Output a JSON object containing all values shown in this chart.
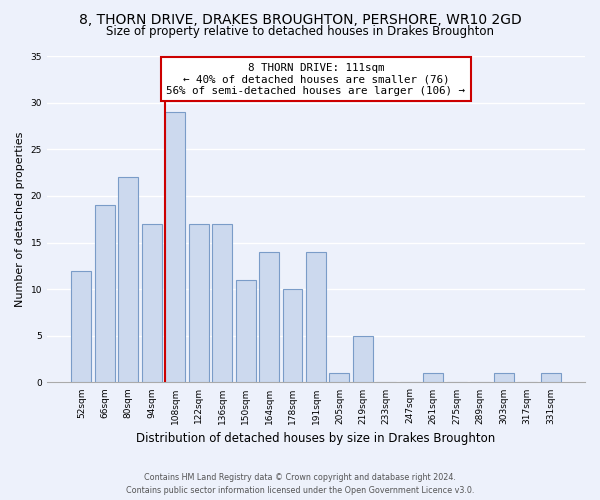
{
  "title": "8, THORN DRIVE, DRAKES BROUGHTON, PERSHORE, WR10 2GD",
  "subtitle": "Size of property relative to detached houses in Drakes Broughton",
  "xlabel": "Distribution of detached houses by size in Drakes Broughton",
  "ylabel": "Number of detached properties",
  "bin_labels": [
    "52sqm",
    "66sqm",
    "80sqm",
    "94sqm",
    "108sqm",
    "122sqm",
    "136sqm",
    "150sqm",
    "164sqm",
    "178sqm",
    "191sqm",
    "205sqm",
    "219sqm",
    "233sqm",
    "247sqm",
    "261sqm",
    "275sqm",
    "289sqm",
    "303sqm",
    "317sqm",
    "331sqm"
  ],
  "bar_values": [
    12,
    19,
    22,
    17,
    29,
    17,
    17,
    11,
    14,
    10,
    14,
    1,
    5,
    0,
    0,
    1,
    0,
    0,
    1,
    0,
    1
  ],
  "bar_color": "#ccd9ee",
  "bar_edge_color": "#7a9cc8",
  "vline_bin_index": 4,
  "vline_color": "#cc0000",
  "ylim": [
    0,
    35
  ],
  "yticks": [
    0,
    5,
    10,
    15,
    20,
    25,
    30,
    35
  ],
  "annotation_text": "8 THORN DRIVE: 111sqm\n← 40% of detached houses are smaller (76)\n56% of semi-detached houses are larger (106) →",
  "annotation_box_color": "#ffffff",
  "annotation_box_edge": "#cc0000",
  "footer_line1": "Contains HM Land Registry data © Crown copyright and database right 2024.",
  "footer_line2": "Contains public sector information licensed under the Open Government Licence v3.0.",
  "background_color": "#edf1fb",
  "grid_color": "#ffffff",
  "title_fontsize": 10,
  "subtitle_fontsize": 8.5,
  "tick_fontsize": 6.5,
  "ylabel_fontsize": 8,
  "xlabel_fontsize": 8.5,
  "annotation_fontsize": 7.8,
  "footer_fontsize": 5.8
}
